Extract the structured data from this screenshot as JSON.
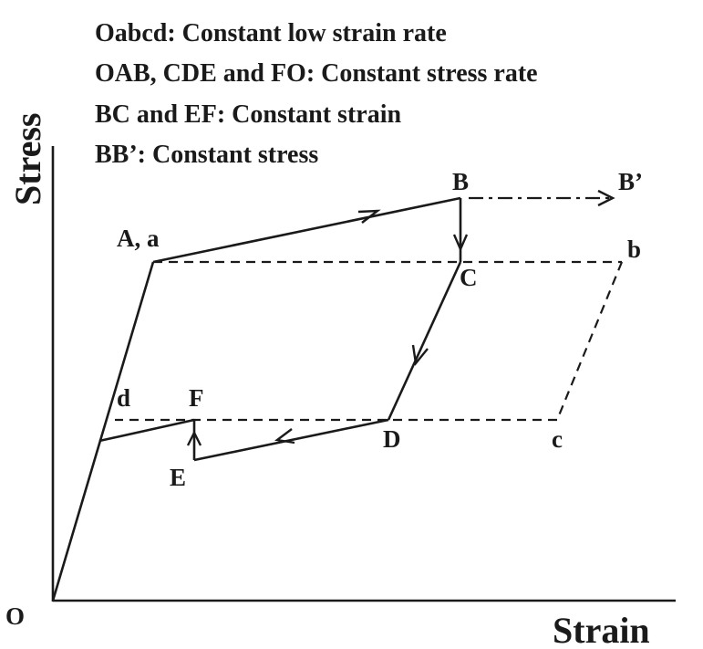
{
  "legend": {
    "line1": "Oabcd: Constant low strain rate",
    "line2": "OAB, CDE and FO: Constant stress rate",
    "line3": "BC and EF: Constant strain",
    "line4": "BB’: Constant stress"
  },
  "axes": {
    "x_title": "Strain",
    "y_title": "Stress"
  },
  "points": {
    "O": "O",
    "A": "A, a",
    "B": "B",
    "B_prime": "B’",
    "b": "b",
    "C": "C",
    "D": "D",
    "c": "c",
    "d": "d",
    "F": "F",
    "E": "E"
  }
}
